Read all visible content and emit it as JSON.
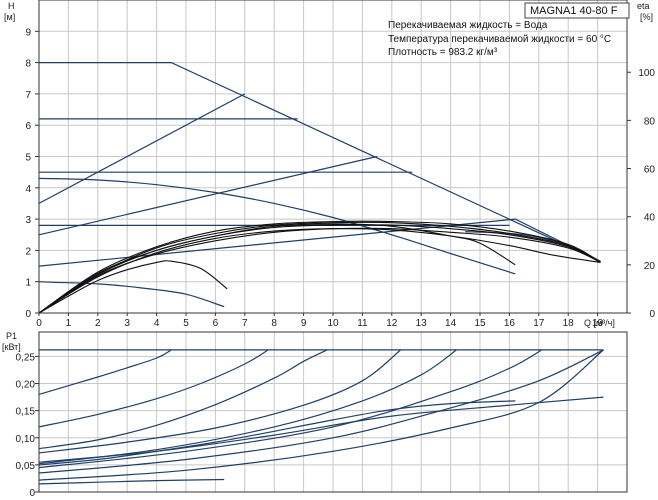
{
  "title": "MAGNA1 40-80 F",
  "info": [
    "Перекачиваемая жидкость = Вода",
    "Температура перекачиваемой жидкости = 60 °C",
    "Плотность = 983.2 кг/м³"
  ],
  "colors": {
    "curve": "#1f3f66",
    "grid": "#c8c8c8",
    "axis": "#333333",
    "text": "#222222"
  },
  "chart_data": [
    {
      "type": "line",
      "name": "head",
      "xlabel": "Q [м³/ч]",
      "ylabel": [
        "H",
        "[м]"
      ],
      "y2label": [
        "eta",
        "[%]"
      ],
      "xlim": [
        0,
        20
      ],
      "ylim": [
        0,
        10
      ],
      "y2lim": [
        0,
        130
      ],
      "xticks": [
        0,
        1,
        2,
        3,
        4,
        5,
        6,
        7,
        8,
        9,
        10,
        11,
        12,
        13,
        14,
        15,
        16,
        17,
        18,
        19
      ],
      "yticks": [
        0,
        1,
        2,
        3,
        4,
        5,
        6,
        7,
        8,
        9
      ],
      "y2ticks": [
        0,
        20,
        40,
        60,
        80,
        100
      ],
      "grid": true,
      "series": [
        {
          "axis": "left",
          "values": [
            [
              0,
              8.0
            ],
            [
              4.5,
              8.0
            ],
            [
              19.1,
              1.65
            ]
          ]
        },
        {
          "axis": "left",
          "values": [
            [
              0,
              6.2
            ],
            [
              8.8,
              6.2
            ]
          ]
        },
        {
          "axis": "left",
          "values": [
            [
              0,
              4.5
            ],
            [
              12.7,
              4.5
            ]
          ]
        },
        {
          "axis": "left",
          "values": [
            [
              0,
              2.8
            ],
            [
              16,
              2.8
            ]
          ]
        },
        {
          "axis": "left",
          "values": [
            [
              0,
              1.0
            ],
            [
              0.5,
              0.98
            ],
            [
              2,
              0.93
            ],
            [
              3.5,
              0.8
            ],
            [
              5,
              0.6
            ],
            [
              6.3,
              0.2
            ]
          ]
        },
        {
          "axis": "left",
          "values": [
            [
              0,
              3.5
            ],
            [
              7,
              7.0
            ]
          ]
        },
        {
          "axis": "left",
          "values": [
            [
              0,
              2.5
            ],
            [
              11.5,
              5.0
            ]
          ]
        },
        {
          "axis": "left",
          "values": [
            [
              0,
              1.5
            ],
            [
              16.2,
              3.0
            ],
            [
              19.1,
              1.65
            ]
          ]
        },
        {
          "axis": "left",
          "values": [
            [
              0,
              4.3
            ],
            [
              2,
              4.25
            ],
            [
              4,
              4.1
            ],
            [
              6,
              3.85
            ],
            [
              8,
              3.5
            ],
            [
              10,
              3.05
            ],
            [
              12,
              2.5
            ],
            [
              14,
              1.9
            ],
            [
              16.2,
              1.25
            ]
          ]
        },
        {
          "axis": "left",
          "values": [
            [
              14.5,
              2.6
            ],
            [
              16.5,
              2.5
            ],
            [
              18,
              2.15
            ],
            [
              19.1,
              1.65
            ]
          ]
        },
        {
          "axis": "right",
          "values": [
            [
              0,
              0
            ],
            [
              1,
              7
            ],
            [
              2,
              13.5
            ],
            [
              3,
              18
            ],
            [
              4,
              21
            ],
            [
              4.5,
              21.5
            ],
            [
              5.5,
              18.5
            ],
            [
              6.4,
              10
            ]
          ]
        },
        {
          "axis": "right",
          "values": [
            [
              0,
              0
            ],
            [
              2,
              16
            ],
            [
              4,
              26
            ],
            [
              6,
              32
            ],
            [
              8,
              36
            ],
            [
              10,
              37
            ],
            [
              12,
              36
            ],
            [
              14,
              32
            ],
            [
              15,
              29
            ],
            [
              16.2,
              20
            ]
          ]
        },
        {
          "axis": "right",
          "values": [
            [
              0,
              0
            ],
            [
              2,
              15
            ],
            [
              4,
              25
            ],
            [
              6,
              31
            ],
            [
              8,
              34
            ],
            [
              10,
              35
            ],
            [
              12,
              34.5
            ],
            [
              14,
              32
            ],
            [
              16,
              28
            ],
            [
              17.5,
              24
            ],
            [
              19.1,
              21
            ]
          ]
        },
        {
          "axis": "right",
          "values": [
            [
              0,
              0
            ],
            [
              2,
              16
            ],
            [
              4,
              27
            ],
            [
              6,
              33
            ],
            [
              8,
              36.5
            ],
            [
              10,
              37.5
            ],
            [
              12,
              37.5
            ],
            [
              14,
              36
            ],
            [
              16,
              33
            ],
            [
              18,
              28
            ],
            [
              19.1,
              21
            ]
          ]
        },
        {
          "axis": "right",
          "values": [
            [
              0,
              0
            ],
            [
              2,
              17
            ],
            [
              4,
              27.5
            ],
            [
              6,
              34
            ],
            [
              8,
              37
            ],
            [
              10,
              38
            ],
            [
              12,
              38
            ],
            [
              14,
              37
            ],
            [
              16,
              34
            ],
            [
              18,
              28.5
            ],
            [
              19.1,
              21
            ]
          ]
        },
        {
          "axis": "right",
          "values": [
            [
              0,
              0
            ],
            [
              2,
              16.5
            ],
            [
              4,
              26
            ],
            [
              6,
              32
            ],
            [
              8,
              35.5
            ],
            [
              10,
              36.5
            ],
            [
              12,
              36.5
            ],
            [
              14,
              35
            ],
            [
              16,
              32.5
            ],
            [
              18,
              27.5
            ],
            [
              19.1,
              21
            ]
          ]
        },
        {
          "axis": "right",
          "values": [
            [
              0,
              0
            ],
            [
              2,
              15.5
            ],
            [
              4,
              24.5
            ],
            [
              6,
              30
            ],
            [
              8,
              33.5
            ],
            [
              10,
              35
            ],
            [
              12,
              35
            ],
            [
              14,
              33.5
            ],
            [
              16,
              31.5
            ],
            [
              18,
              27
            ],
            [
              19.1,
              21
            ]
          ]
        }
      ]
    },
    {
      "type": "line",
      "name": "power",
      "xlabel": "",
      "ylabel": [
        "P1",
        "[кВт]"
      ],
      "xlim": [
        0,
        20
      ],
      "ylim": [
        0,
        0.295
      ],
      "yticks": [
        0,
        0.05,
        0.1,
        0.15,
        0.2,
        0.25
      ],
      "yticklabels": [
        "0",
        "0,05",
        "0,10",
        "0,15",
        "0,20",
        "0,25"
      ],
      "grid": true,
      "series": [
        {
          "values": [
            [
              0,
              0.262
            ],
            [
              19.2,
              0.262
            ]
          ],
          "kind": "cap"
        },
        {
          "values": [
            [
              0,
              0.18
            ],
            [
              1,
              0.196
            ],
            [
              2,
              0.212
            ],
            [
              3,
              0.229
            ],
            [
              4,
              0.247
            ],
            [
              4.5,
              0.262
            ]
          ]
        },
        {
          "values": [
            [
              0,
              0.12
            ],
            [
              2,
              0.143
            ],
            [
              4,
              0.172
            ],
            [
              5.5,
              0.2
            ],
            [
              7,
              0.236
            ],
            [
              7.8,
              0.262
            ]
          ]
        },
        {
          "values": [
            [
              0,
              0.08
            ],
            [
              2,
              0.096
            ],
            [
              4,
              0.123
            ],
            [
              6,
              0.161
            ],
            [
              8,
              0.21
            ],
            [
              9,
              0.241
            ],
            [
              9.8,
              0.262
            ]
          ]
        },
        {
          "values": [
            [
              0,
              0.072
            ],
            [
              3,
              0.092
            ],
            [
              6,
              0.118
            ],
            [
              9,
              0.16
            ],
            [
              11,
              0.205
            ],
            [
              12.3,
              0.262
            ]
          ]
        },
        {
          "values": [
            [
              0,
              0.052
            ],
            [
              4,
              0.078
            ],
            [
              8,
              0.12
            ],
            [
              11,
              0.168
            ],
            [
              13,
              0.216
            ],
            [
              14.2,
              0.262
            ]
          ]
        },
        {
          "values": [
            [
              0,
              0.045
            ],
            [
              5,
              0.075
            ],
            [
              10,
              0.12
            ],
            [
              14,
              0.185
            ],
            [
              16,
              0.228
            ],
            [
              17.1,
              0.262
            ]
          ]
        },
        {
          "values": [
            [
              0,
              0.035
            ],
            [
              5,
              0.06
            ],
            [
              10,
              0.1
            ],
            [
              14,
              0.155
            ],
            [
              17,
              0.205
            ],
            [
              19.2,
              0.262
            ]
          ]
        },
        {
          "values": [
            [
              0,
              0.022
            ],
            [
              5,
              0.04
            ],
            [
              10,
              0.075
            ],
            [
              14,
              0.118
            ],
            [
              17,
              0.165
            ],
            [
              19.2,
              0.262
            ]
          ]
        },
        {
          "values": [
            [
              0,
              0.055
            ],
            [
              4,
              0.075
            ],
            [
              8,
              0.105
            ],
            [
              12,
              0.14
            ],
            [
              16,
              0.16
            ],
            [
              19.2,
              0.175
            ]
          ]
        },
        {
          "values": [
            [
              0,
              0.05
            ],
            [
              2,
              0.06
            ],
            [
              4,
              0.075
            ],
            [
              6,
              0.092
            ],
            [
              8,
              0.112
            ],
            [
              10,
              0.133
            ],
            [
              12,
              0.152
            ],
            [
              14,
              0.163
            ],
            [
              16.2,
              0.168
            ]
          ]
        },
        {
          "values": [
            [
              0,
              0.015
            ],
            [
              2,
              0.018
            ],
            [
              4,
              0.021
            ],
            [
              6.3,
              0.023
            ]
          ]
        }
      ]
    }
  ]
}
